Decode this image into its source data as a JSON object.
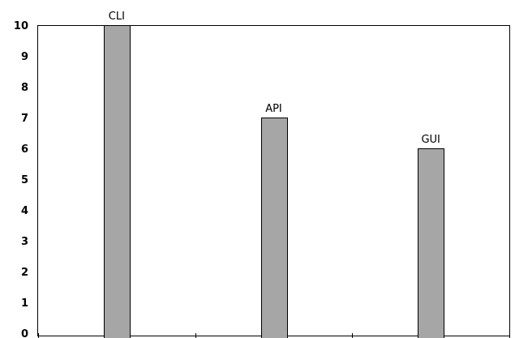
{
  "chart_data": {
    "type": "bar",
    "categories": [
      "CLI",
      "API",
      "GUI"
    ],
    "values": [
      10,
      7,
      6
    ],
    "data_labels": [
      "CLI",
      "API",
      "GUI"
    ],
    "yticks": [
      "0",
      "1",
      "2",
      "3",
      "4",
      "5",
      "6",
      "7",
      "8",
      "9",
      "10"
    ],
    "ylim": [
      0,
      10
    ],
    "title": "",
    "xlabel": "",
    "ylabel": "",
    "grid": false,
    "legend": "none",
    "bar_color": "#a6a6a6",
    "bar_edge_color": "#000000",
    "axis_color": "#000000"
  }
}
